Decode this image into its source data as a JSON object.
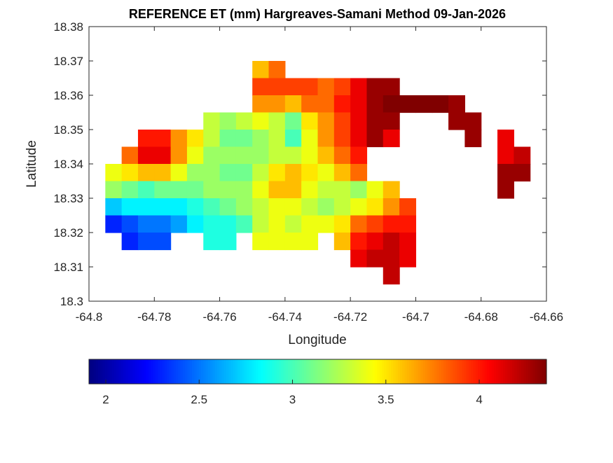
{
  "chart_data": {
    "type": "heatmap",
    "subtype": "filled-contour map",
    "title": "REFERENCE ET (mm) Hargreaves-Samani Method  09-Jan-2026",
    "xlabel": "Longitude",
    "ylabel": "Latitude",
    "xlim": [
      -64.8,
      -64.66
    ],
    "ylim": [
      18.3,
      18.38
    ],
    "xticks": [
      "-64.8",
      "-64.78",
      "-64.76",
      "-64.74",
      "-64.72",
      "-64.7",
      "-64.68",
      "-64.66"
    ],
    "yticks": [
      "18.3",
      "18.31",
      "18.32",
      "18.33",
      "18.34",
      "18.35",
      "18.36",
      "18.37",
      "18.38"
    ],
    "grid": false,
    "colormap": "jet",
    "colorbar": {
      "placement": "bottom",
      "range": [
        1.91,
        4.36
      ],
      "ticks": [
        "2",
        "2.5",
        "3",
        "3.5",
        "4"
      ]
    },
    "cell_size_deg": 0.005,
    "lon": [
      -64.7925,
      -64.7875,
      -64.7825,
      -64.7775,
      -64.7725,
      -64.7675,
      -64.7625,
      -64.7575,
      -64.7525,
      -64.7475,
      -64.7425,
      -64.7375,
      -64.7325,
      -64.7275,
      -64.7225,
      -64.7175,
      -64.7125,
      -64.7075,
      -64.7025,
      -64.6975,
      -64.6925,
      -64.6875,
      -64.6825,
      -64.6775,
      -64.6725,
      -64.6675
    ],
    "lat": [
      18.3675,
      18.3625,
      18.3575,
      18.3525,
      18.3475,
      18.3425,
      18.3375,
      18.3325,
      18.3275,
      18.3225,
      18.3175,
      18.3125,
      18.3075
    ],
    "values": [
      [
        null,
        null,
        null,
        null,
        null,
        null,
        null,
        null,
        null,
        3.6,
        3.75,
        null,
        null,
        null,
        null,
        null,
        null,
        null,
        null,
        null,
        null,
        null,
        null,
        null,
        null,
        null
      ],
      [
        null,
        null,
        null,
        null,
        null,
        null,
        null,
        null,
        null,
        3.9,
        3.85,
        3.85,
        3.9,
        3.8,
        3.9,
        4.05,
        4.25,
        4.3,
        null,
        null,
        null,
        null,
        null,
        null,
        null,
        null
      ],
      [
        null,
        null,
        null,
        null,
        null,
        null,
        null,
        null,
        null,
        3.7,
        3.7,
        3.6,
        3.75,
        3.8,
        3.95,
        4.1,
        4.25,
        4.35,
        4.35,
        4.35,
        4.35,
        4.3,
        null,
        null,
        null,
        null
      ],
      [
        null,
        null,
        null,
        null,
        null,
        null,
        3.3,
        3.2,
        3.3,
        3.4,
        3.3,
        3.1,
        3.5,
        3.7,
        3.9,
        4.1,
        4.25,
        4.3,
        null,
        null,
        null,
        4.3,
        4.3,
        null,
        null,
        null
      ],
      [
        null,
        null,
        4.0,
        4.0,
        3.7,
        3.5,
        3.3,
        3.1,
        3.1,
        3.2,
        3.3,
        2.95,
        3.4,
        3.7,
        3.9,
        4.05,
        4.25,
        4.1,
        null,
        null,
        null,
        null,
        4.3,
        null,
        4.1,
        null
      ],
      [
        null,
        3.8,
        4.1,
        4.05,
        3.7,
        3.4,
        3.2,
        3.15,
        3.15,
        3.2,
        3.3,
        3.3,
        3.4,
        3.6,
        3.8,
        4.0,
        null,
        null,
        null,
        null,
        null,
        null,
        null,
        null,
        4.1,
        4.2
      ],
      [
        3.4,
        3.5,
        3.6,
        3.6,
        3.4,
        3.2,
        3.15,
        3.1,
        3.1,
        3.3,
        3.5,
        3.6,
        3.5,
        3.4,
        3.6,
        3.8,
        null,
        null,
        null,
        null,
        null,
        null,
        null,
        null,
        4.25,
        4.25
      ],
      [
        3.15,
        3.1,
        3.0,
        3.05,
        3.1,
        3.1,
        3.15,
        3.15,
        3.2,
        3.4,
        3.55,
        3.55,
        3.4,
        3.3,
        3.3,
        3.2,
        3.4,
        3.6,
        null,
        null,
        null,
        null,
        null,
        null,
        4.25,
        null
      ],
      [
        2.7,
        2.75,
        2.8,
        2.75,
        2.8,
        2.9,
        3.0,
        3.05,
        3.15,
        3.3,
        3.4,
        3.4,
        3.3,
        3.2,
        3.3,
        3.4,
        3.5,
        3.7,
        3.85,
        null,
        null,
        null,
        null,
        null,
        null,
        null
      ],
      [
        2.3,
        2.4,
        2.5,
        2.45,
        2.6,
        2.75,
        2.85,
        2.9,
        3.0,
        3.3,
        3.35,
        3.3,
        3.35,
        3.4,
        3.5,
        3.8,
        3.9,
        3.95,
        4.0,
        null,
        null,
        null,
        null,
        null,
        null,
        null
      ],
      [
        null,
        2.3,
        2.35,
        2.4,
        null,
        null,
        2.9,
        2.85,
        null,
        3.4,
        3.4,
        3.4,
        3.4,
        null,
        3.6,
        4.0,
        4.1,
        4.15,
        4.1,
        null,
        null,
        null,
        null,
        null,
        null,
        null
      ],
      [
        null,
        null,
        null,
        null,
        null,
        null,
        null,
        null,
        null,
        null,
        null,
        null,
        null,
        null,
        null,
        4.05,
        4.15,
        4.2,
        4.1,
        null,
        null,
        null,
        null,
        null,
        null,
        null
      ],
      [
        null,
        null,
        null,
        null,
        null,
        null,
        null,
        null,
        null,
        null,
        null,
        null,
        null,
        null,
        null,
        null,
        null,
        4.2,
        null,
        null,
        null,
        null,
        null,
        null,
        null,
        null
      ]
    ]
  }
}
